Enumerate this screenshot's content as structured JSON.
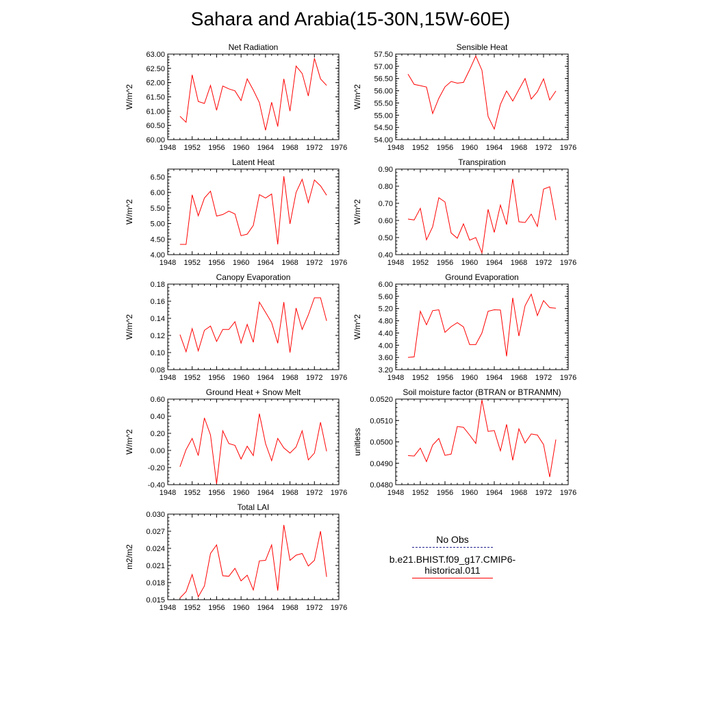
{
  "title": "Sahara and Arabia(15-30N,15W-60E)",
  "colors": {
    "model_line": "#ff0000",
    "obs_line": "#1f1f8f",
    "axis": "#000000"
  },
  "legend": {
    "obs_label": "No Obs",
    "model_label": "b.e21.BHIST.f09_g17.CMIP6-historical.011"
  },
  "chart_data": [
    {
      "type": "line",
      "title": "Net Radiation",
      "ylabel": "W/m^2",
      "xlim": [
        1948,
        1976
      ],
      "ylim": [
        60.0,
        63.0
      ],
      "xticks": [
        1948,
        1952,
        1956,
        1960,
        1964,
        1968,
        1972,
        1976
      ],
      "yticks": [
        "60.00",
        "60.50",
        "61.00",
        "61.50",
        "62.00",
        "62.50",
        "63.00"
      ],
      "x": [
        1950,
        1951,
        1952,
        1953,
        1954,
        1955,
        1956,
        1957,
        1958,
        1959,
        1960,
        1961,
        1962,
        1963,
        1964,
        1965,
        1966,
        1967,
        1968,
        1969,
        1970,
        1971,
        1972,
        1973,
        1974
      ],
      "series": [
        {
          "values": [
            60.82,
            60.61,
            62.27,
            61.34,
            61.27,
            61.9,
            61.03,
            61.88,
            61.78,
            61.71,
            61.37,
            62.13,
            61.74,
            61.3,
            60.33,
            61.31,
            60.46,
            62.13,
            61.0,
            62.58,
            62.32,
            61.53,
            62.85,
            62.13,
            61.9
          ]
        }
      ]
    },
    {
      "type": "line",
      "title": "Sensible Heat",
      "ylabel": "W/m^2",
      "xlim": [
        1948,
        1976
      ],
      "ylim": [
        54.0,
        57.5
      ],
      "xticks": [
        1948,
        1952,
        1956,
        1960,
        1964,
        1968,
        1972,
        1976
      ],
      "yticks": [
        "54.00",
        "54.50",
        "55.00",
        "55.50",
        "56.00",
        "56.50",
        "57.00",
        "57.50"
      ],
      "x": [
        1950,
        1951,
        1952,
        1953,
        1954,
        1955,
        1956,
        1957,
        1958,
        1959,
        1960,
        1961,
        1962,
        1963,
        1964,
        1965,
        1966,
        1967,
        1968,
        1969,
        1970,
        1971,
        1972,
        1973,
        1974
      ],
      "series": [
        {
          "values": [
            56.68,
            56.26,
            56.21,
            56.15,
            55.07,
            55.69,
            56.16,
            56.38,
            56.31,
            56.34,
            56.86,
            57.42,
            56.84,
            54.95,
            54.43,
            55.44,
            55.99,
            55.58,
            56.05,
            56.5,
            55.66,
            55.96,
            56.49,
            55.62,
            55.99
          ]
        }
      ]
    },
    {
      "type": "line",
      "title": "Latent Heat",
      "ylabel": "W/m^2",
      "xlim": [
        1948,
        1976
      ],
      "ylim": [
        4.0,
        6.75
      ],
      "xticks": [
        1948,
        1952,
        1956,
        1960,
        1964,
        1968,
        1972,
        1976
      ],
      "yticks": [
        "4.00",
        "4.50",
        "5.00",
        "5.50",
        "6.00",
        "6.50"
      ],
      "x": [
        1950,
        1951,
        1952,
        1953,
        1954,
        1955,
        1956,
        1957,
        1958,
        1959,
        1960,
        1961,
        1962,
        1963,
        1964,
        1965,
        1966,
        1967,
        1968,
        1969,
        1970,
        1971,
        1972,
        1973,
        1974
      ],
      "series": [
        {
          "values": [
            4.33,
            4.33,
            5.92,
            5.25,
            5.82,
            6.04,
            5.24,
            5.29,
            5.4,
            5.31,
            4.61,
            4.66,
            4.94,
            5.93,
            5.82,
            5.95,
            4.33,
            6.52,
            4.99,
            6.0,
            6.42,
            5.67,
            6.4,
            6.21,
            5.91
          ]
        }
      ]
    },
    {
      "type": "line",
      "title": "Transpiration",
      "ylabel": "W/m^2",
      "xlim": [
        1948,
        1976
      ],
      "ylim": [
        0.4,
        0.9
      ],
      "xticks": [
        1948,
        1952,
        1956,
        1960,
        1964,
        1968,
        1972,
        1976
      ],
      "yticks": [
        "0.40",
        "0.50",
        "0.60",
        "0.70",
        "0.80",
        "0.90"
      ],
      "x": [
        1950,
        1951,
        1952,
        1953,
        1954,
        1955,
        1956,
        1957,
        1958,
        1959,
        1960,
        1961,
        1962,
        1963,
        1964,
        1965,
        1966,
        1967,
        1968,
        1969,
        1970,
        1971,
        1972,
        1973,
        1974
      ],
      "series": [
        {
          "values": [
            0.608,
            0.603,
            0.671,
            0.487,
            0.563,
            0.733,
            0.708,
            0.527,
            0.496,
            0.58,
            0.485,
            0.5,
            0.41,
            0.665,
            0.53,
            0.69,
            0.576,
            0.843,
            0.592,
            0.588,
            0.637,
            0.565,
            0.783,
            0.797,
            0.602
          ]
        }
      ]
    },
    {
      "type": "line",
      "title": "Canopy Evaporation",
      "ylabel": "W/m^2",
      "xlim": [
        1948,
        1976
      ],
      "ylim": [
        0.08,
        0.18
      ],
      "xticks": [
        1948,
        1952,
        1956,
        1960,
        1964,
        1968,
        1972,
        1976
      ],
      "yticks": [
        "0.08",
        "0.10",
        "0.12",
        "0.14",
        "0.16",
        "0.18"
      ],
      "x": [
        1950,
        1951,
        1952,
        1953,
        1954,
        1955,
        1956,
        1957,
        1958,
        1959,
        1960,
        1961,
        1962,
        1963,
        1964,
        1965,
        1966,
        1967,
        1968,
        1969,
        1970,
        1971,
        1972,
        1973,
        1974
      ],
      "series": [
        {
          "values": [
            0.121,
            0.101,
            0.128,
            0.102,
            0.126,
            0.131,
            0.113,
            0.127,
            0.127,
            0.136,
            0.111,
            0.133,
            0.112,
            0.159,
            0.147,
            0.135,
            0.111,
            0.159,
            0.1,
            0.152,
            0.127,
            0.144,
            0.164,
            0.164,
            0.137
          ]
        }
      ]
    },
    {
      "type": "line",
      "title": "Ground Evaporation",
      "ylabel": "W/m^2",
      "xlim": [
        1948,
        1976
      ],
      "ylim": [
        3.2,
        6.0
      ],
      "xticks": [
        1948,
        1952,
        1956,
        1960,
        1964,
        1968,
        1972,
        1976
      ],
      "yticks": [
        "3.20",
        "3.60",
        "4.00",
        "4.40",
        "4.80",
        "5.20",
        "5.60",
        "6.00"
      ],
      "x": [
        1950,
        1951,
        1952,
        1953,
        1954,
        1955,
        1956,
        1957,
        1958,
        1959,
        1960,
        1961,
        1962,
        1963,
        1964,
        1965,
        1966,
        1967,
        1968,
        1969,
        1970,
        1971,
        1972,
        1973,
        1974
      ],
      "series": [
        {
          "values": [
            3.6,
            3.62,
            5.11,
            4.67,
            5.13,
            5.16,
            4.42,
            4.61,
            4.74,
            4.6,
            4.02,
            4.02,
            4.4,
            5.11,
            5.16,
            5.15,
            3.64,
            5.55,
            4.3,
            5.29,
            5.67,
            4.97,
            5.46,
            5.23,
            5.21
          ]
        }
      ]
    },
    {
      "type": "line",
      "title": "Ground Heat + Snow Melt",
      "ylabel": "W/m^2",
      "xlim": [
        1948,
        1976
      ],
      "ylim": [
        -0.4,
        0.6
      ],
      "xticks": [
        1948,
        1952,
        1956,
        1960,
        1964,
        1968,
        1972,
        1976
      ],
      "yticks": [
        "-0.40",
        "-0.20",
        "0.00",
        "0.20",
        "0.40",
        "0.60"
      ],
      "x": [
        1950,
        1951,
        1952,
        1953,
        1954,
        1955,
        1956,
        1957,
        1958,
        1959,
        1960,
        1961,
        1962,
        1963,
        1964,
        1965,
        1966,
        1967,
        1968,
        1969,
        1970,
        1971,
        1972,
        1973,
        1974
      ],
      "series": [
        {
          "values": [
            -0.19,
            0.01,
            0.14,
            -0.06,
            0.38,
            0.18,
            -0.39,
            0.23,
            0.08,
            0.06,
            -0.1,
            0.05,
            -0.06,
            0.43,
            0.08,
            -0.12,
            0.14,
            0.03,
            -0.03,
            0.04,
            0.23,
            -0.11,
            -0.03,
            0.33,
            -0.01
          ]
        }
      ]
    },
    {
      "type": "line",
      "title": "Soil moisture factor (BTRAN or BTRANMN)",
      "ylabel": "unitless",
      "xlim": [
        1948,
        1976
      ],
      "ylim": [
        0.048,
        0.052
      ],
      "xticks": [
        1948,
        1952,
        1956,
        1960,
        1964,
        1968,
        1972,
        1976
      ],
      "yticks": [
        "0.0480",
        "0.0490",
        "0.0500",
        "0.0510",
        "0.0520"
      ],
      "x": [
        1950,
        1951,
        1952,
        1953,
        1954,
        1955,
        1956,
        1957,
        1958,
        1959,
        1960,
        1961,
        1962,
        1963,
        1964,
        1965,
        1966,
        1967,
        1968,
        1969,
        1970,
        1971,
        1972,
        1973,
        1974
      ],
      "series": [
        {
          "values": [
            0.04936,
            0.04934,
            0.04971,
            0.04908,
            0.04985,
            0.05016,
            0.04937,
            0.04943,
            0.05072,
            0.05068,
            0.05032,
            0.04993,
            0.05196,
            0.05049,
            0.05053,
            0.04958,
            0.05082,
            0.04914,
            0.05061,
            0.04995,
            0.05037,
            0.05032,
            0.04988,
            0.04836,
            0.05011
          ]
        }
      ]
    },
    {
      "type": "line",
      "title": "Total LAI",
      "ylabel": "m2/m2",
      "xlim": [
        1948,
        1976
      ],
      "ylim": [
        0.015,
        0.03
      ],
      "xticks": [
        1948,
        1952,
        1956,
        1960,
        1964,
        1968,
        1972,
        1976
      ],
      "yticks": [
        "0.015",
        "0.018",
        "0.021",
        "0.024",
        "0.027",
        "0.030"
      ],
      "x": [
        1950,
        1951,
        1952,
        1953,
        1954,
        1955,
        1956,
        1957,
        1958,
        1959,
        1960,
        1961,
        1962,
        1963,
        1964,
        1965,
        1966,
        1967,
        1968,
        1969,
        1970,
        1971,
        1972,
        1973,
        1974
      ],
      "series": [
        {
          "values": [
            0.0153,
            0.0164,
            0.0194,
            0.0155,
            0.0174,
            0.0231,
            0.0246,
            0.0192,
            0.0191,
            0.0205,
            0.0183,
            0.0193,
            0.0167,
            0.0218,
            0.0219,
            0.0246,
            0.0166,
            0.0281,
            0.0219,
            0.0228,
            0.0231,
            0.0209,
            0.0219,
            0.027,
            0.019
          ]
        }
      ]
    }
  ]
}
